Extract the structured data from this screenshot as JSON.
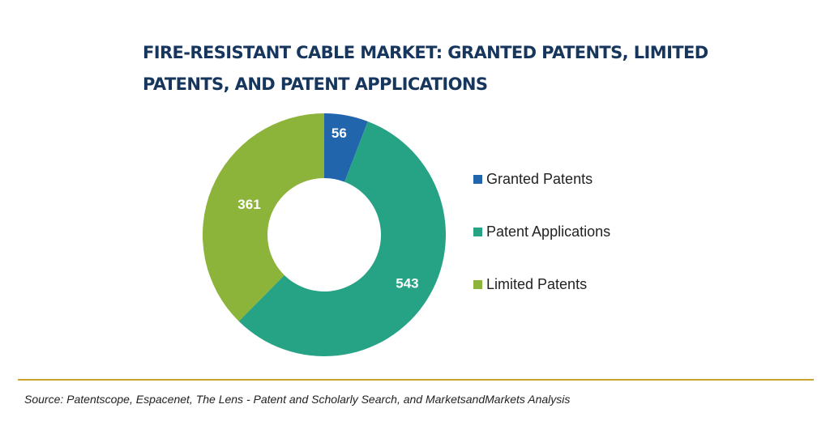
{
  "chart_data": {
    "type": "pie",
    "title": "FIRE-RESISTANT CABLE MARKET: GRANTED PATENTS, LIMITED PATENTS, AND PATENT APPLICATIONS",
    "donut": true,
    "categories": [
      "Granted Patents",
      "Patent Applications",
      "Limited Patents"
    ],
    "values": [
      56,
      543,
      361
    ],
    "data_labels": [
      "56",
      "543",
      "361"
    ],
    "colors": [
      "#2166ad",
      "#26a285",
      "#8db43a"
    ],
    "legend": {
      "placement": "right",
      "entries": [
        "Granted Patents",
        "Patent Applications",
        "Limited Patents"
      ]
    }
  },
  "source": "Source: Patentscope, Espacenet, The Lens - Patent and Scholarly Search, and MarketsandMarkets Analysis",
  "rule_color": "#c8a42d",
  "title_color": "#17365d"
}
